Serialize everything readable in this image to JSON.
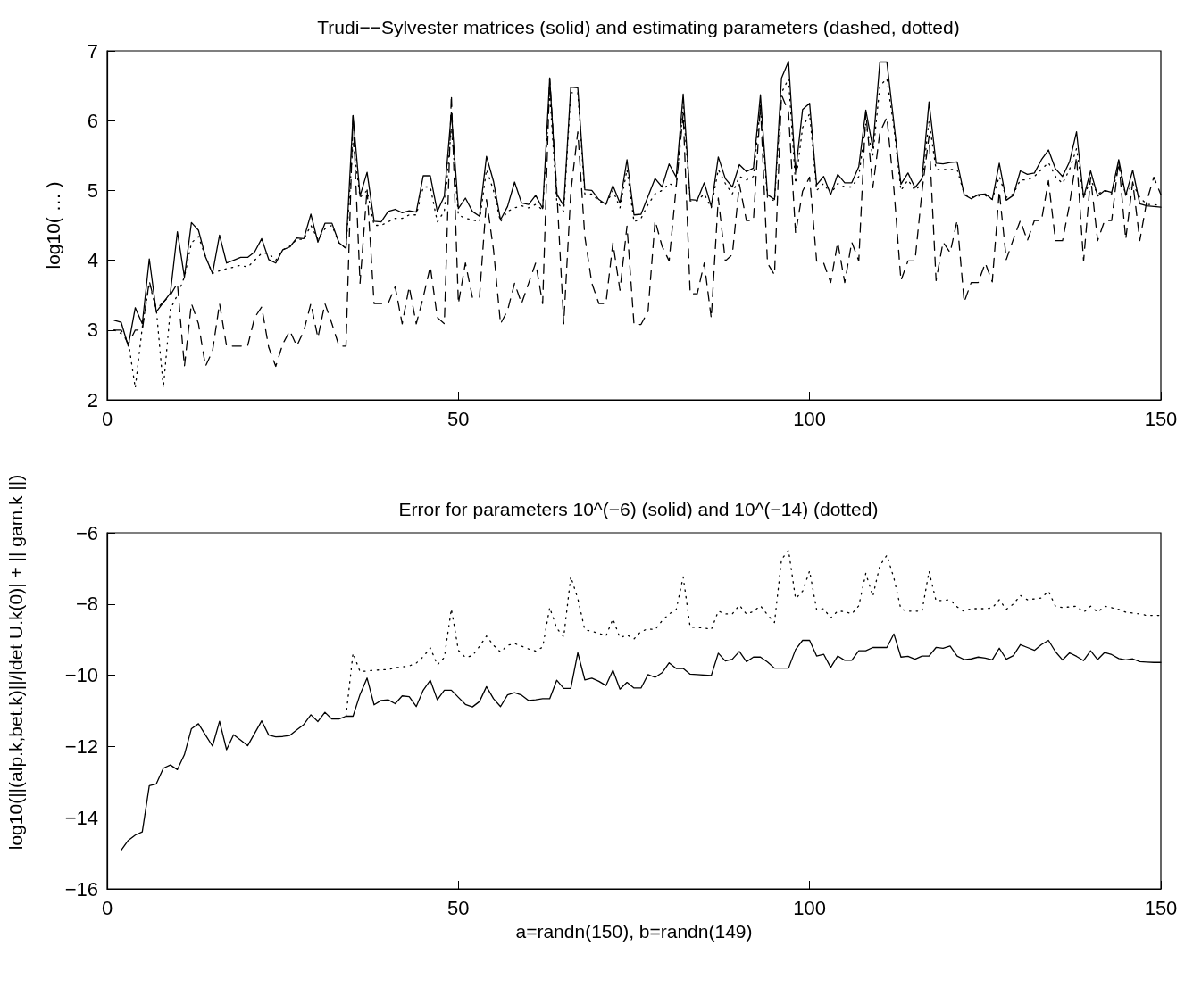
{
  "chart_data": [
    {
      "type": "line",
      "title": "Trudi−−Sylvester matrices (solid) and estimating parameters (dashed, dotted)",
      "ylabel": "log10( … )",
      "xlim": [
        0,
        150
      ],
      "xticks": [
        0,
        50,
        100,
        150
      ],
      "ylim": [
        2,
        7
      ],
      "yticks": [
        2,
        3,
        4,
        5,
        6,
        7
      ],
      "series": [
        {
          "color": "#000000",
          "line_style": "solid",
          "x": [
            1,
            2,
            3,
            4,
            5,
            6,
            7,
            9,
            10,
            11,
            12,
            13,
            14,
            15,
            16,
            17,
            18,
            19,
            20,
            21,
            22,
            23,
            24,
            25,
            26,
            27,
            28,
            29,
            30,
            31,
            32,
            33,
            34,
            35,
            36,
            37,
            38,
            39,
            40,
            41,
            42,
            43,
            44,
            45,
            46,
            47,
            48,
            49,
            50,
            51,
            52,
            53,
            54,
            55,
            56,
            57,
            58,
            59,
            60,
            61,
            62,
            63,
            64,
            65,
            66,
            67,
            68,
            69,
            70,
            71,
            72,
            73,
            74,
            75,
            76,
            78,
            79,
            80,
            81,
            82,
            83,
            84,
            85,
            86,
            87,
            88,
            89,
            90,
            91,
            92,
            93,
            94,
            95,
            96,
            97,
            98,
            99,
            100,
            101,
            102,
            103,
            104,
            105,
            106,
            107,
            108,
            109,
            110,
            111,
            113,
            114,
            115,
            116,
            117,
            118,
            119,
            120,
            121,
            122,
            123,
            124,
            125,
            126,
            127,
            128,
            129,
            130,
            131,
            132,
            133,
            134,
            135,
            136,
            137,
            138,
            139,
            140,
            141,
            142,
            143,
            144,
            145,
            146,
            147,
            148,
            149,
            150
          ],
          "values": [
            3.14,
            3.11,
            2.77,
            3.32,
            3.09,
            4.02,
            3.26,
            3.53,
            4.41,
            3.76,
            4.54,
            4.43,
            4.05,
            3.81,
            4.36,
            3.96,
            4.0,
            4.04,
            4.04,
            4.12,
            4.31,
            4.01,
            3.96,
            4.15,
            4.19,
            4.32,
            4.31,
            4.66,
            4.26,
            4.53,
            4.53,
            4.25,
            4.17,
            6.07,
            4.92,
            5.26,
            4.56,
            4.55,
            4.7,
            4.73,
            4.68,
            4.71,
            4.69,
            5.21,
            5.21,
            4.7,
            4.92,
            6.12,
            4.74,
            4.89,
            4.7,
            4.63,
            5.49,
            5.13,
            4.58,
            4.77,
            5.12,
            4.82,
            4.8,
            4.93,
            4.74,
            6.61,
            4.95,
            4.78,
            6.48,
            6.47,
            5.01,
            5.0,
            4.87,
            4.8,
            5.07,
            4.82,
            5.44,
            4.65,
            4.66,
            5.17,
            5.05,
            5.38,
            5.19,
            6.38,
            4.87,
            4.86,
            5.11,
            4.77,
            5.48,
            5.17,
            5.05,
            5.37,
            5.27,
            5.32,
            6.37,
            4.94,
            4.87,
            6.61,
            6.85,
            5.26,
            6.16,
            6.25,
            5.08,
            5.2,
            4.94,
            5.23,
            5.11,
            5.11,
            5.34,
            6.15,
            5.61,
            6.84,
            6.84,
            5.09,
            5.25,
            5.04,
            5.17,
            6.27,
            5.39,
            5.38,
            5.4,
            5.41,
            4.94,
            4.88,
            4.94,
            4.95,
            4.87,
            5.39,
            4.86,
            4.93,
            5.28,
            5.23,
            5.25,
            5.44,
            5.58,
            5.31,
            5.2,
            5.41,
            5.84,
            4.9,
            5.28,
            4.92,
            5.0,
            4.97,
            5.44,
            4.93,
            5.29,
            4.81,
            4.78,
            4.77,
            4.76
          ]
        },
        {
          "color": "#000000",
          "line_style": "dashed",
          "x": [
            1,
            2,
            3,
            4,
            5,
            6,
            7,
            8,
            9,
            10,
            11,
            12,
            13,
            14,
            15,
            16,
            17,
            18,
            19,
            20,
            21,
            22,
            23,
            24,
            25,
            26,
            27,
            28,
            29,
            30,
            31,
            32,
            33,
            34,
            35,
            36,
            37,
            38,
            39,
            40,
            41,
            42,
            43,
            44,
            45,
            46,
            47,
            48,
            49,
            50,
            51,
            52,
            53,
            54,
            55,
            56,
            57,
            58,
            59,
            60,
            61,
            62,
            63,
            64,
            65,
            66,
            67,
            68,
            69,
            70,
            71,
            72,
            73,
            74,
            75,
            76,
            77,
            78,
            79,
            80,
            82,
            83,
            84,
            85,
            86,
            87,
            88,
            89,
            90,
            91,
            92,
            93,
            94,
            95,
            96,
            97,
            98,
            99,
            100,
            101,
            102,
            103,
            104,
            105,
            106,
            107,
            108,
            109,
            110,
            111,
            112,
            113,
            114,
            115,
            116,
            117,
            118,
            119,
            120,
            121,
            122,
            123,
            124,
            125,
            126,
            127,
            128,
            129,
            130,
            131,
            132,
            133,
            134,
            135,
            136,
            137,
            138,
            139,
            140,
            141,
            142,
            143,
            144,
            145,
            146,
            147,
            148,
            149,
            150
          ],
          "values": [
            3.0,
            3.0,
            2.8,
            3.0,
            3.0,
            3.7,
            3.3,
            3.4,
            3.5,
            3.67,
            2.48,
            3.38,
            3.09,
            2.48,
            2.7,
            3.38,
            2.77,
            2.77,
            2.77,
            2.77,
            3.18,
            3.33,
            2.75,
            2.48,
            2.8,
            2.99,
            2.77,
            2.99,
            3.38,
            2.89,
            3.38,
            3.09,
            2.77,
            2.77,
            6.08,
            3.67,
            5.02,
            3.38,
            3.38,
            3.38,
            3.62,
            3.09,
            3.62,
            3.09,
            3.47,
            3.91,
            3.18,
            3.09,
            6.37,
            3.38,
            3.96,
            3.47,
            3.47,
            4.87,
            4.15,
            3.09,
            3.28,
            3.67,
            3.38,
            3.67,
            3.96,
            3.38,
            6.61,
            5.02,
            3.09,
            4.97,
            5.84,
            4.34,
            3.67,
            3.38,
            3.38,
            4.25,
            3.57,
            4.49,
            3.08,
            3.08,
            3.27,
            4.57,
            4.2,
            3.99,
            6.1,
            3.52,
            3.52,
            3.96,
            3.17,
            4.89,
            3.99,
            4.08,
            5.09,
            4.57,
            4.57,
            6.22,
            3.96,
            3.79,
            6.37,
            6.12,
            4.38,
            4.99,
            5.19,
            3.99,
            3.96,
            3.68,
            4.26,
            3.68,
            4.26,
            3.99,
            6.12,
            5.04,
            5.83,
            6.05,
            5.02,
            3.71,
            3.99,
            3.99,
            4.99,
            5.78,
            3.71,
            4.26,
            4.11,
            4.57,
            3.4,
            3.68,
            3.68,
            3.96,
            3.69,
            4.99,
            4.01,
            4.3,
            4.57,
            4.28,
            4.57,
            4.57,
            5.14,
            4.28,
            4.28,
            4.8,
            5.48,
            3.99,
            5.19,
            4.28,
            4.57,
            4.57,
            5.43,
            4.3,
            5.12,
            4.28,
            4.85,
            5.19,
            4.94
          ]
        },
        {
          "color": "#000000",
          "line_style": "dotted",
          "x": [
            1,
            2,
            3,
            4,
            5,
            6,
            7,
            8,
            9,
            10,
            11,
            12,
            13,
            14,
            15,
            16,
            17,
            18,
            19,
            20,
            21,
            22,
            23,
            24,
            25,
            26,
            27,
            28,
            29,
            30,
            31,
            32,
            33,
            34,
            35,
            36,
            37,
            38,
            39,
            40,
            41,
            42,
            43,
            44,
            45,
            46,
            47,
            48,
            49,
            50,
            51,
            52,
            53,
            54,
            55,
            56,
            57,
            58,
            59,
            60,
            61,
            62,
            63,
            64,
            65,
            66,
            67,
            68,
            69,
            70,
            71,
            72,
            73,
            74,
            75,
            76,
            77,
            78,
            79,
            80,
            81,
            82,
            83,
            84,
            85,
            86,
            87,
            88,
            89,
            90,
            91,
            92,
            93,
            94,
            95,
            96,
            97,
            98,
            99,
            100,
            101,
            102,
            103,
            104,
            105,
            106,
            107,
            108,
            109,
            110,
            111,
            112,
            113,
            114,
            115,
            116,
            117,
            118,
            119,
            120,
            121,
            122,
            123,
            124,
            125,
            126,
            127,
            128,
            129,
            130,
            131,
            132,
            133,
            134,
            135,
            136,
            137,
            138,
            139,
            140,
            141,
            142,
            143,
            144,
            145,
            146,
            147,
            148,
            149,
            150
          ],
          "values": [
            3.0,
            2.95,
            2.85,
            2.17,
            3.04,
            3.67,
            3.3,
            2.17,
            3.3,
            3.5,
            3.76,
            4.25,
            4.34,
            4.05,
            3.81,
            3.85,
            3.88,
            3.9,
            3.93,
            3.9,
            4.0,
            4.1,
            4.1,
            4.0,
            4.15,
            4.2,
            4.3,
            4.3,
            4.5,
            4.3,
            4.45,
            4.5,
            4.25,
            4.17,
            5.7,
            4.9,
            5.0,
            4.5,
            4.5,
            4.55,
            4.6,
            4.6,
            4.65,
            4.65,
            5.05,
            5.05,
            4.55,
            4.7,
            5.9,
            4.65,
            4.6,
            4.58,
            4.55,
            5.3,
            5.0,
            4.55,
            4.7,
            4.75,
            4.78,
            4.75,
            4.8,
            4.72,
            6.4,
            4.85,
            4.7,
            6.4,
            6.4,
            4.95,
            4.95,
            4.85,
            4.8,
            5.0,
            4.75,
            5.3,
            4.55,
            4.6,
            4.8,
            4.95,
            5.0,
            5.1,
            5.05,
            6.2,
            4.85,
            4.85,
            4.95,
            4.75,
            5.3,
            5.1,
            4.95,
            5.2,
            5.15,
            5.2,
            6.2,
            4.9,
            4.85,
            6.4,
            6.6,
            5.1,
            5.9,
            6.1,
            5.0,
            5.1,
            4.95,
            5.1,
            5.05,
            5.05,
            5.2,
            5.95,
            5.5,
            6.5,
            6.6,
            5.9,
            5.0,
            5.15,
            5.0,
            5.1,
            6.0,
            5.3,
            5.3,
            5.3,
            5.3,
            4.95,
            4.9,
            4.92,
            4.93,
            4.87,
            5.2,
            4.9,
            4.95,
            5.15,
            5.15,
            5.2,
            5.3,
            5.4,
            5.2,
            5.1,
            5.3,
            5.6,
            4.9,
            5.15,
            4.95,
            5.0,
            4.95,
            5.35,
            4.93,
            5.1,
            4.9,
            4.8,
            4.8,
            4.78
          ]
        }
      ]
    },
    {
      "type": "line",
      "title": "Error for parameters 10^(−6) (solid) and 10^(−14) (dotted)",
      "xlabel": "a=randn(150), b=randn(149)",
      "ylabel": "log10(||(alp.k,bet.k)||/|det U.k(0)| + || gam.k ||)",
      "xlim": [
        0,
        150
      ],
      "xticks": [
        0,
        50,
        100,
        150
      ],
      "ylim": [
        -16,
        -6
      ],
      "yticks": [
        {
          "value": -16,
          "label": "−16"
        },
        {
          "value": -14,
          "label": "−14"
        },
        {
          "value": -12,
          "label": "−12"
        },
        {
          "value": -10,
          "label": "−10"
        },
        {
          "value": -8,
          "label": "−8"
        },
        {
          "value": -6,
          "label": "−6"
        }
      ],
      "series": [
        {
          "color": "#000000",
          "line_style": "solid",
          "x": [
            2,
            3,
            4,
            5,
            6,
            7,
            8,
            9,
            10,
            11,
            12,
            13,
            14,
            15,
            16,
            17,
            18,
            19,
            20,
            22,
            23,
            24,
            25,
            26,
            27,
            28,
            29,
            30,
            31,
            32,
            33,
            34,
            35,
            36,
            37,
            38,
            39,
            40,
            41,
            42,
            43,
            44,
            45,
            46,
            47,
            48,
            49,
            50,
            51,
            52,
            53,
            54,
            55,
            56,
            57,
            58,
            59,
            60,
            61,
            62,
            63,
            64,
            65,
            66,
            67,
            68,
            69,
            70,
            71,
            72,
            73,
            74,
            75,
            76,
            77,
            78,
            79,
            80,
            81,
            82,
            83,
            84,
            86,
            87,
            88,
            89,
            90,
            91,
            92,
            93,
            94,
            95,
            96,
            97,
            98,
            99,
            100,
            101,
            102,
            103,
            104,
            105,
            106,
            107,
            108,
            109,
            110,
            111,
            112,
            113,
            114,
            115,
            116,
            117,
            118,
            119,
            120,
            121,
            122,
            123,
            124,
            125,
            126,
            127,
            128,
            129,
            130,
            131,
            132,
            133,
            134,
            135,
            136,
            137,
            138,
            139,
            140,
            141,
            142,
            143,
            144,
            145,
            146,
            147,
            148,
            149,
            150
          ],
          "values": [
            -14.91,
            -14.64,
            -14.49,
            -14.4,
            -13.1,
            -13.05,
            -12.61,
            -12.52,
            -12.65,
            -12.23,
            -11.5,
            -11.36,
            -11.68,
            -11.99,
            -11.29,
            -12.09,
            -11.67,
            -11.82,
            -11.98,
            -11.28,
            -11.68,
            -11.73,
            -11.72,
            -11.69,
            -11.53,
            -11.38,
            -11.11,
            -11.3,
            -11.04,
            -11.23,
            -11.23,
            -11.15,
            -11.15,
            -10.54,
            -10.08,
            -10.83,
            -10.71,
            -10.69,
            -10.8,
            -10.58,
            -10.6,
            -10.88,
            -10.42,
            -10.14,
            -10.69,
            -10.42,
            -10.42,
            -10.62,
            -10.82,
            -10.89,
            -10.74,
            -10.32,
            -10.66,
            -10.88,
            -10.55,
            -10.49,
            -10.56,
            -10.71,
            -10.69,
            -10.66,
            -10.66,
            -10.14,
            -10.37,
            -10.37,
            -9.37,
            -10.13,
            -10.08,
            -10.17,
            -10.29,
            -9.86,
            -10.39,
            -10.2,
            -10.36,
            -10.36,
            -9.98,
            -10.06,
            -9.93,
            -9.65,
            -9.81,
            -9.81,
            -9.97,
            -9.98,
            -10.01,
            -9.38,
            -9.6,
            -9.55,
            -9.33,
            -9.62,
            -9.49,
            -9.49,
            -9.63,
            -9.8,
            -9.8,
            -9.8,
            -9.28,
            -9.02,
            -9.02,
            -9.46,
            -9.41,
            -9.78,
            -9.46,
            -9.58,
            -9.58,
            -9.31,
            -9.31,
            -9.22,
            -9.22,
            -9.22,
            -8.84,
            -9.49,
            -9.47,
            -9.55,
            -9.46,
            -9.46,
            -9.22,
            -9.24,
            -9.18,
            -9.46,
            -9.56,
            -9.54,
            -9.49,
            -9.52,
            -9.57,
            -9.24,
            -9.55,
            -9.45,
            -9.14,
            -9.22,
            -9.3,
            -9.14,
            -9.02,
            -9.34,
            -9.57,
            -9.37,
            -9.47,
            -9.59,
            -9.31,
            -9.56,
            -9.36,
            -9.42,
            -9.53,
            -9.57,
            -9.54,
            -9.62,
            -9.63,
            -9.64,
            -9.64
          ]
        },
        {
          "color": "#000000",
          "line_style": "dotted",
          "x": [
            34,
            35,
            36,
            38,
            40,
            41,
            43,
            44,
            45,
            46,
            47,
            48,
            49,
            50,
            51,
            52,
            53,
            54,
            55,
            56,
            57,
            58,
            60,
            61,
            62,
            63,
            64,
            65,
            66,
            67,
            68,
            70,
            71,
            72,
            73,
            74,
            75,
            76,
            77,
            78,
            79,
            80,
            81,
            82,
            83,
            85,
            86,
            87,
            88,
            89,
            90,
            91,
            92,
            93,
            94,
            95,
            96,
            97,
            98,
            99,
            100,
            101,
            102,
            103,
            104,
            105,
            106,
            107,
            108,
            109,
            110,
            111,
            112,
            113,
            114,
            116,
            117,
            118,
            120,
            121,
            122,
            123,
            125,
            126,
            127,
            128,
            129,
            130,
            131,
            133,
            134,
            135,
            136,
            138,
            139,
            140,
            141,
            142,
            144,
            145,
            147,
            148,
            150
          ],
          "values": [
            -11.15,
            -9.38,
            -9.9,
            -9.86,
            -9.84,
            -9.79,
            -9.74,
            -9.66,
            -9.48,
            -9.23,
            -9.71,
            -9.5,
            -8.14,
            -9.3,
            -9.5,
            -9.45,
            -9.19,
            -8.9,
            -9.16,
            -9.35,
            -9.16,
            -9.11,
            -9.26,
            -9.32,
            -9.21,
            -8.1,
            -8.68,
            -8.92,
            -7.23,
            -7.85,
            -8.72,
            -8.82,
            -8.9,
            -8.42,
            -8.95,
            -8.87,
            -8.98,
            -8.77,
            -8.7,
            -8.72,
            -8.47,
            -8.28,
            -8.16,
            -7.24,
            -8.65,
            -8.67,
            -8.72,
            -8.2,
            -8.28,
            -8.28,
            -8.03,
            -8.28,
            -8.21,
            -8.05,
            -8.3,
            -8.52,
            -6.75,
            -6.49,
            -7.85,
            -7.64,
            -7.07,
            -8.16,
            -8.13,
            -8.39,
            -8.2,
            -8.21,
            -8.28,
            -8.05,
            -7.14,
            -7.78,
            -6.92,
            -6.63,
            -7.27,
            -8.15,
            -8.2,
            -8.2,
            -7.08,
            -7.91,
            -7.88,
            -8.08,
            -8.21,
            -8.13,
            -8.13,
            -8.11,
            -7.88,
            -8.15,
            -8.0,
            -7.76,
            -7.88,
            -7.83,
            -7.64,
            -8.06,
            -8.1,
            -8.06,
            -8.23,
            -8.06,
            -8.23,
            -8.06,
            -8.15,
            -8.23,
            -8.28,
            -8.32,
            -8.32
          ]
        }
      ]
    }
  ]
}
